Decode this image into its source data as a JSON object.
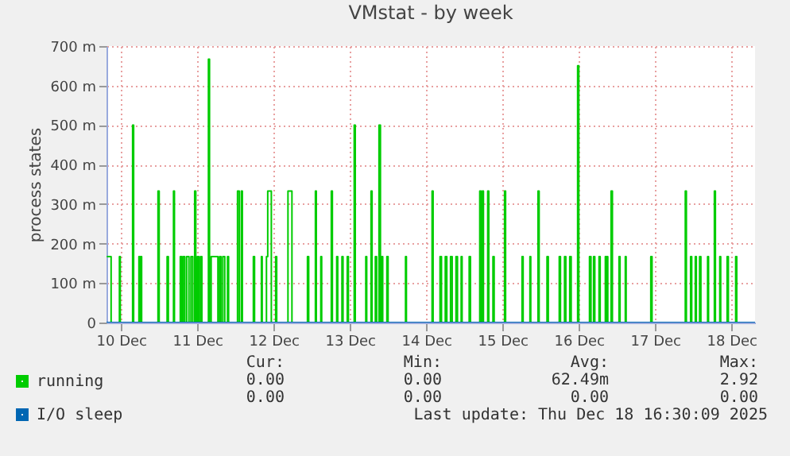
{
  "chart_data": {
    "type": "step",
    "title": "VMstat - by week",
    "ylabel": "process states",
    "xlim": [
      "2025-12-09T19:26",
      "2025-12-18T07:26"
    ],
    "xticks": [
      {
        "value": "2025-12-10",
        "label": "10 Dec"
      },
      {
        "value": "2025-12-11",
        "label": "11 Dec"
      },
      {
        "value": "2025-12-12",
        "label": "12 Dec"
      },
      {
        "value": "2025-12-13",
        "label": "13 Dec"
      },
      {
        "value": "2025-12-14",
        "label": "14 Dec"
      },
      {
        "value": "2025-12-15",
        "label": "15 Dec"
      },
      {
        "value": "2025-12-16",
        "label": "16 Dec"
      },
      {
        "value": "2025-12-17",
        "label": "17 Dec"
      },
      {
        "value": "2025-12-18",
        "label": "18 Dec"
      }
    ],
    "ylim": [
      0,
      700
    ],
    "yticks": [
      0,
      {
        "value": 100,
        "label": "100 m"
      },
      {
        "value": 200,
        "label": "200 m"
      },
      {
        "value": 300,
        "label": "300 m"
      },
      {
        "value": 400,
        "label": "400 m"
      },
      {
        "value": 500,
        "label": "500 m"
      },
      {
        "value": 600,
        "label": "600 m"
      },
      {
        "value": 700,
        "label": "700 m"
      }
    ],
    "grid": true,
    "legend": "bottom left",
    "line_style": "solid",
    "series": [
      {
        "name": "running",
        "color": "#00cc00",
        "x": [
          "2025-12-09T19:31",
          "2025-12-09T20:38",
          "2025-12-09T20:53",
          "2025-12-09T23:30",
          "2025-12-09T23:46",
          "2025-12-10T03:39",
          "2025-12-10T03:58",
          "2025-12-10T05:38",
          "2025-12-10T05:53",
          "2025-12-10T06:09",
          "2025-12-10T06:29",
          "2025-12-10T11:38",
          "2025-12-10T12:00",
          "2025-12-10T14:30",
          "2025-12-10T14:53",
          "2025-12-10T16:31",
          "2025-12-10T16:48",
          "2025-12-10T18:39",
          "2025-12-10T19:05",
          "2025-12-10T19:31",
          "2025-12-10T20:02",
          "2025-12-10T20:38",
          "2025-12-10T21:22",
          "2025-12-10T22:00",
          "2025-12-10T22:34",
          "2025-12-10T23:10",
          "2025-12-10T23:31",
          "2025-12-11T00:00",
          "2025-12-11T00:29",
          "2025-12-11T01:00",
          "2025-12-11T01:26",
          "2025-12-11T03:30",
          "2025-12-11T03:50",
          "2025-12-11T04:21",
          "2025-12-11T06:00",
          "2025-12-11T06:29",
          "2025-12-11T07:00",
          "2025-12-11T07:26",
          "2025-12-11T08:00",
          "2025-12-11T08:38",
          "2025-12-11T09:30",
          "2025-12-11T09:50",
          "2025-12-11T12:39",
          "2025-12-11T13:12",
          "2025-12-11T13:51",
          "2025-12-11T14:10",
          "2025-12-11T17:38",
          "2025-12-11T18:00",
          "2025-12-11T20:10",
          "2025-12-11T20:24",
          "2025-12-11T21:45",
          "2025-12-11T22:09",
          "2025-12-11T23:00",
          "2025-12-11T23:17",
          "2025-12-12T00:39",
          "2025-12-12T00:58",
          "2025-12-12T04:31",
          "2025-12-12T05:30",
          "2025-12-12T05:46",
          "2025-12-12T10:39",
          "2025-12-12T11:02",
          "2025-12-12T13:09",
          "2025-12-12T13:26",
          "2025-12-12T14:51",
          "2025-12-12T15:07",
          "2025-12-12T18:09",
          "2025-12-12T18:29",
          "2025-12-12T19:51",
          "2025-12-12T20:10",
          "2025-12-12T21:30",
          "2025-12-12T21:50",
          "2025-12-12T23:10",
          "2025-12-12T23:31",
          "2025-12-13T01:21",
          "2025-12-13T01:41",
          "2025-12-13T05:00",
          "2025-12-13T05:17",
          "2025-12-13T06:39",
          "2025-12-13T06:58",
          "2025-12-13T08:00",
          "2025-12-13T08:24",
          "2025-12-13T09:09",
          "2025-12-13T09:36",
          "2025-12-13T10:00",
          "2025-12-13T10:19",
          "2025-12-13T11:38",
          "2025-12-13T12:00",
          "2025-12-13T17:30",
          "2025-12-13T17:46",
          "2025-12-14T01:51",
          "2025-12-14T02:10",
          "2025-12-14T04:21",
          "2025-12-14T04:48",
          "2025-12-14T06:00",
          "2025-12-14T06:29",
          "2025-12-14T07:39",
          "2025-12-14T08:10",
          "2025-12-14T09:22",
          "2025-12-14T09:50",
          "2025-12-14T11:00",
          "2025-12-14T11:17",
          "2025-12-14T13:31",
          "2025-12-14T13:55",
          "2025-12-14T16:51",
          "2025-12-14T17:14",
          "2025-12-14T17:38",
          "2025-12-14T18:00",
          "2025-12-14T19:21",
          "2025-12-14T19:41",
          "2025-12-14T21:00",
          "2025-12-14T21:22",
          "2025-12-15T00:39",
          "2025-12-15T00:58",
          "2025-12-15T06:09",
          "2025-12-15T06:29",
          "2025-12-15T08:38",
          "2025-12-15T08:53",
          "2025-12-15T11:10",
          "2025-12-15T11:31",
          "2025-12-15T14:00",
          "2025-12-15T14:24",
          "2025-12-15T17:51",
          "2025-12-15T18:14",
          "2025-12-15T19:31",
          "2025-12-15T19:55",
          "2025-12-15T21:09",
          "2025-12-15T21:36",
          "2025-12-15T23:38",
          "2025-12-16T00:00",
          "2025-12-16T03:22",
          "2025-12-16T03:50",
          "2025-12-16T04:39",
          "2025-12-16T05:02",
          "2025-12-16T06:22",
          "2025-12-16T06:43",
          "2025-12-16T08:21",
          "2025-12-16T08:36",
          "2025-12-16T08:51",
          "2025-12-16T09:07",
          "2025-12-16T10:09",
          "2025-12-16T10:34",
          "2025-12-16T12:39",
          "2025-12-16T12:58",
          "2025-12-16T14:38",
          "2025-12-16T14:53",
          "2025-12-16T22:39",
          "2025-12-16T23:02",
          "2025-12-17T09:30",
          "2025-12-17T09:50",
          "2025-12-17T11:10",
          "2025-12-17T11:31",
          "2025-12-17T12:39",
          "2025-12-17T12:58",
          "2025-12-17T14:00",
          "2025-12-17T14:24",
          "2025-12-17T16:31",
          "2025-12-17T16:48",
          "2025-12-17T18:39",
          "2025-12-17T18:58",
          "2025-12-17T20:21",
          "2025-12-17T20:38",
          "2025-12-17T22:39",
          "2025-12-17T23:02",
          "2025-12-18T01:21",
          "2025-12-18T01:41",
          "2025-12-18T07:26"
        ],
        "values": [
          167,
          167,
          0,
          167,
          0,
          500,
          0,
          167,
          0,
          167,
          0,
          333,
          0,
          167,
          0,
          333,
          0,
          167,
          0,
          167,
          0,
          167,
          0,
          167,
          0,
          333,
          0,
          167,
          0,
          167,
          0,
          667,
          0,
          167,
          167,
          0,
          167,
          0,
          167,
          0,
          167,
          0,
          333,
          0,
          333,
          0,
          167,
          0,
          167,
          0,
          167,
          333,
          333,
          0,
          167,
          0,
          333,
          333,
          0,
          167,
          0,
          333,
          0,
          167,
          0,
          333,
          0,
          167,
          0,
          167,
          0,
          167,
          0,
          500,
          0,
          167,
          0,
          333,
          0,
          167,
          0,
          500,
          0,
          167,
          0,
          167,
          0,
          167,
          0,
          333,
          0,
          167,
          0,
          167,
          0,
          167,
          0,
          167,
          0,
          167,
          0,
          167,
          0,
          333,
          0,
          333,
          0,
          333,
          0,
          167,
          0,
          333,
          0,
          167,
          0,
          167,
          0,
          333,
          0,
          167,
          0,
          167,
          0,
          167,
          0,
          167,
          0,
          650,
          0,
          167,
          0,
          167,
          0,
          167,
          0,
          167,
          0,
          167,
          0,
          333,
          0,
          167,
          0,
          167,
          0,
          167,
          0,
          333,
          0,
          167,
          0,
          167,
          0,
          167,
          0,
          167,
          0,
          333,
          0,
          167,
          0,
          167,
          0,
          167,
          0,
          0
        ]
      },
      {
        "name": "I/O sleep",
        "color": "#0066b3",
        "x": [
          "2025-12-09T19:26",
          "2025-12-18T07:26"
        ],
        "values": [
          0,
          0
        ]
      }
    ],
    "annotations": [
      "Cur:",
      "Min:",
      "Avg:",
      "Max:",
      "0.00",
      "0.00",
      "62.49m",
      "2.92",
      "0.00",
      "0.00",
      "0.00",
      "0.00",
      "Last update: Thu Dec 18 16:30:09 2025"
    ]
  }
}
